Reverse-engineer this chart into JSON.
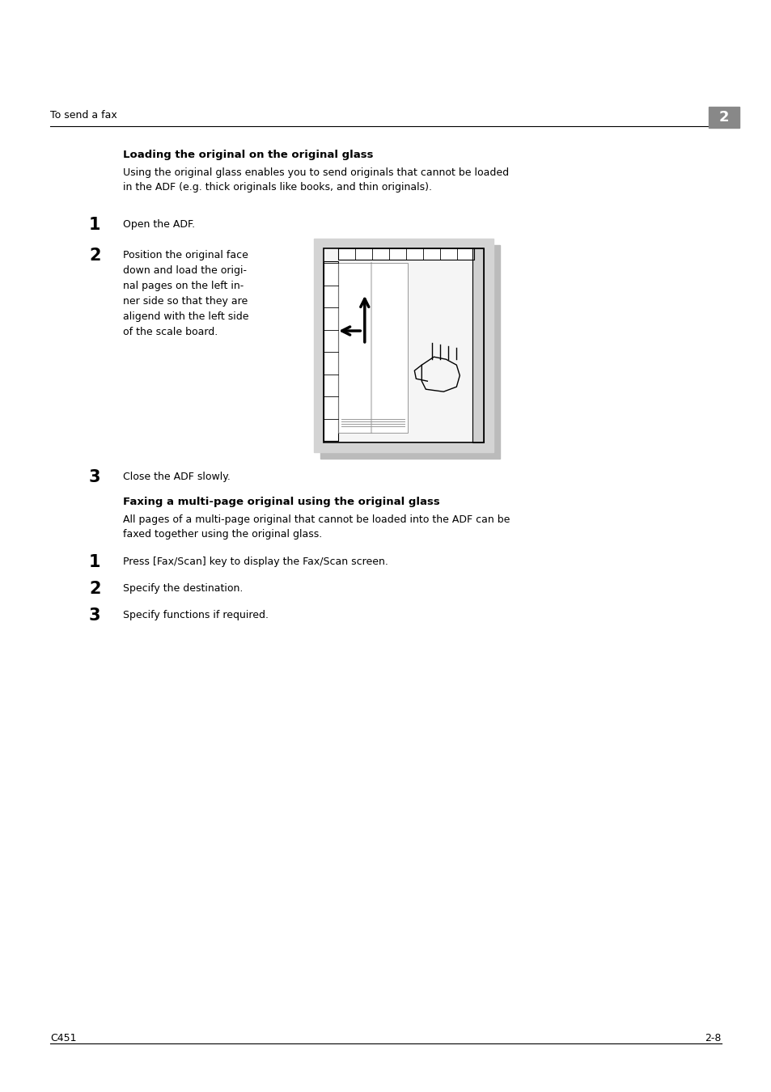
{
  "bg_color": "#ffffff",
  "header_text": "To send a fax",
  "header_num": "2",
  "header_num_bg": "#888888",
  "section1_title": "Loading the original on the original glass",
  "section1_intro": "Using the original glass enables you to send originals that cannot be loaded\nin the ADF (e.g. thick originals like books, and thin originals).",
  "step1_num": "1",
  "step1_text": "Open the ADF.",
  "step2_num": "2",
  "step2_text": "Position the original face\ndown and load the origi-\nnal pages on the left in-\nner side so that they are\naligend with the left side\nof the scale board.",
  "step3_num": "3",
  "step3_text": "Close the ADF slowly.",
  "section2_title": "Faxing a multi-page original using the original glass",
  "section2_intro": "All pages of a multi-page original that cannot be loaded into the ADF can be\nfaxed together using the original glass.",
  "fax_step1_num": "1",
  "fax_step1_text": "Press [Fax/Scan] key to display the Fax/Scan screen.",
  "fax_step2_num": "2",
  "fax_step2_text": "Specify the destination.",
  "fax_step3_num": "3",
  "fax_step3_text": "Specify functions if required.",
  "footer_left": "C451",
  "footer_right": "2-8"
}
